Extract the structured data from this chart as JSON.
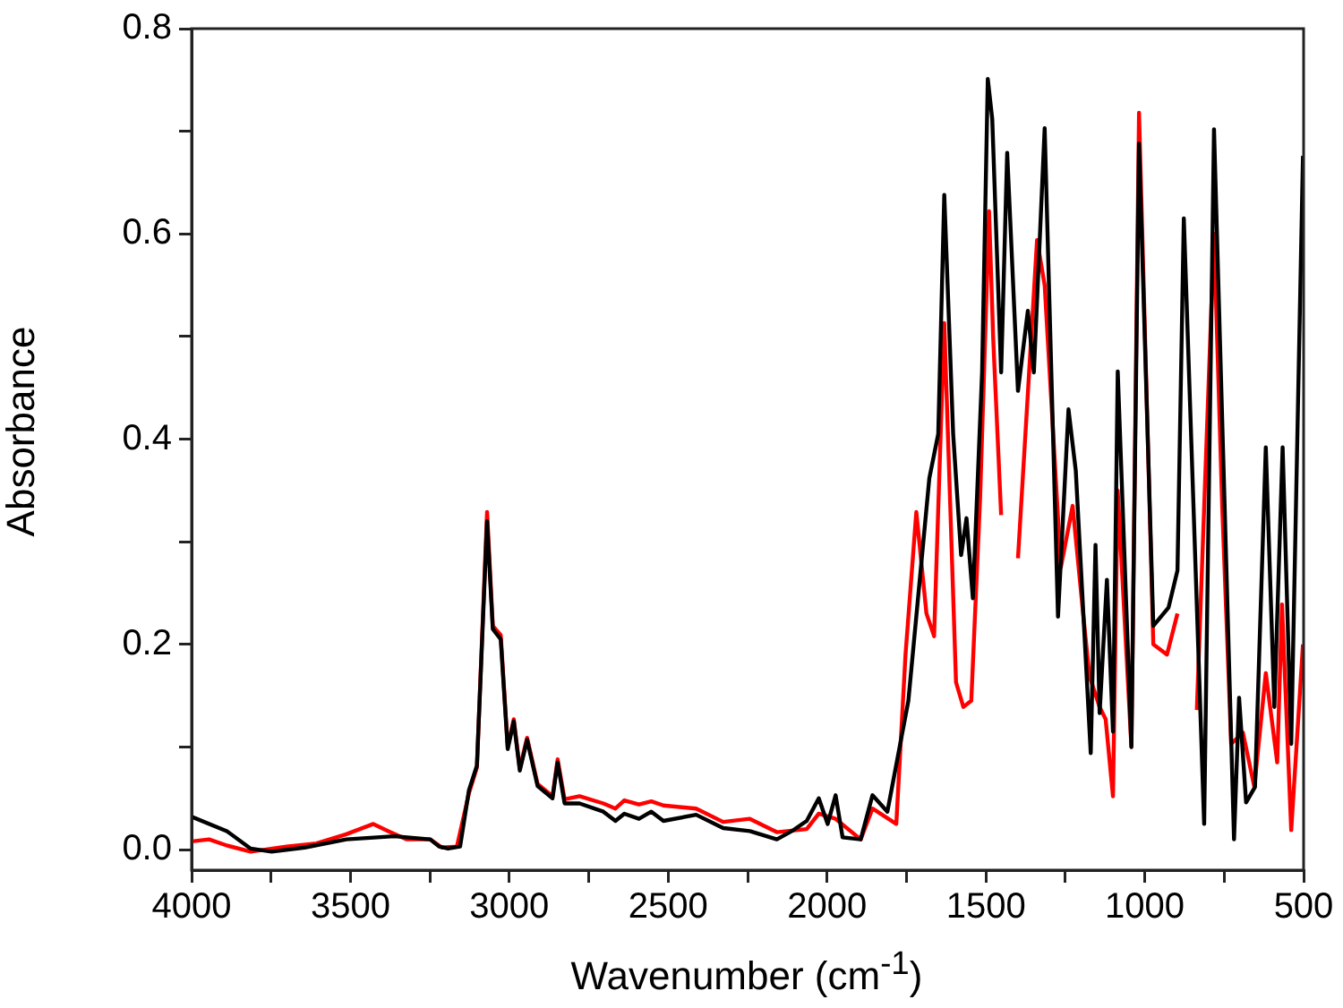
{
  "chart_data": {
    "type": "line",
    "xlabel": "Wavenumber (cm$^{-1}$)",
    "ylabel": "Absorbance",
    "xlim": [
      4000,
      500
    ],
    "xticks": [
      4000,
      {
        "value": 3750,
        "label": null
      },
      3500,
      {
        "value": 3250,
        "label": null
      },
      3000,
      {
        "value": 2750,
        "label": null
      },
      2500,
      {
        "value": 2250,
        "label": null
      },
      2000,
      {
        "value": 1750,
        "label": null
      },
      1500,
      {
        "value": 1250,
        "label": null
      },
      1000,
      {
        "value": 750,
        "label": null
      },
      500
    ],
    "ylim": [
      -0.02,
      0.8
    ],
    "yticks": [
      {
        "value": 0,
        "label": "0.0"
      },
      {
        "value": 0.1,
        "label": null
      },
      {
        "value": 0.2,
        "label": "0.2"
      },
      {
        "value": 0.3,
        "label": null
      },
      {
        "value": 0.4,
        "label": "0.4"
      },
      {
        "value": 0.5,
        "label": null
      },
      {
        "value": 0.6,
        "label": "0.6"
      },
      {
        "value": 0.7,
        "label": null
      },
      {
        "value": 0.8,
        "label": "0.8"
      }
    ],
    "series": [
      {
        "color": "#ff0000",
        "x": [
          4000,
          3945,
          3889,
          3814,
          3701,
          3607,
          3513,
          3428,
          3381,
          3324,
          3249,
          3212,
          3165,
          3127,
          3102,
          3070,
          3052,
          3027,
          3005,
          2986,
          2967,
          2944,
          2911,
          2864,
          2848,
          2826,
          2779,
          2704,
          2666,
          2638,
          2592,
          2553,
          2515,
          2412,
          2327,
          2243,
          2158,
          2064,
          2026,
          1973,
          1894,
          1857,
          1782,
          1753,
          1719,
          1687,
          1663,
          1631,
          1594,
          1571,
          1546,
          1518,
          1490,
          1477,
          1452,
          1433,
          1399,
          1339,
          1315,
          1264,
          1227,
          1193,
          1174,
          1142,
          1123,
          1100,
          1085,
          1042,
          1018,
          973,
          930,
          897,
          877,
          836,
          782,
          756,
          728,
          691,
          655,
          619,
          583,
          568,
          539,
          502
        ],
        "values": [
          0.008,
          0.01,
          0.004,
          -0.002,
          0.003,
          0.006,
          0.015,
          0.025,
          0.018,
          0.01,
          0.01,
          0.002,
          0.003,
          0.055,
          0.08,
          0.329,
          0.218,
          0.209,
          0.1,
          0.127,
          0.079,
          0.109,
          0.064,
          0.052,
          0.088,
          0.049,
          0.052,
          0.045,
          0.04,
          0.048,
          0.044,
          0.047,
          0.043,
          0.04,
          0.027,
          0.03,
          0.017,
          0.02,
          0.035,
          0.03,
          0.01,
          0.04,
          0.025,
          0.19,
          0.329,
          0.23,
          0.208,
          0.513,
          0.163,
          0.139,
          0.145,
          0.344,
          0.622,
          0.498,
          0.326,
          null,
          0.284,
          0.594,
          0.55,
          0.275,
          0.335,
          0.227,
          0.169,
          0.139,
          0.127,
          0.052,
          0.35,
          0.1,
          0.718,
          0.2,
          0.19,
          0.23,
          null,
          0.136,
          0.6,
          0.333,
          0.103,
          0.114,
          0.061,
          0.172,
          0.085,
          0.239,
          0.019,
          0.2
        ]
      },
      {
        "color": "#000000",
        "x": [
          4000,
          3889,
          3814,
          3748,
          3644,
          3513,
          3362,
          3249,
          3221,
          3193,
          3155,
          3127,
          3102,
          3070,
          3052,
          3027,
          3005,
          2986,
          2967,
          2944,
          2911,
          2864,
          2848,
          2826,
          2779,
          2704,
          2666,
          2638,
          2592,
          2553,
          2515,
          2412,
          2327,
          2243,
          2158,
          2111,
          2064,
          2026,
          1998,
          1973,
          1951,
          1894,
          1857,
          1810,
          1744,
          1678,
          1650,
          1631,
          1603,
          1578,
          1561,
          1541,
          1512,
          1494,
          1480,
          1452,
          1433,
          1399,
          1368,
          1349,
          1315,
          1273,
          1240,
          1217,
          1170,
          1155,
          1142,
          1119,
          1100,
          1085,
          1042,
          1018,
          973,
          925,
          897,
          877,
          813,
          782,
          719,
          703,
          681,
          653,
          619,
          592,
          566,
          539,
          502
        ],
        "values": [
          0.032,
          0.018,
          0.001,
          -0.002,
          0.002,
          0.01,
          0.013,
          0.01,
          0.003,
          0.001,
          0.003,
          0.058,
          0.082,
          0.32,
          0.215,
          0.205,
          0.098,
          0.125,
          0.077,
          0.107,
          0.062,
          0.05,
          0.085,
          0.045,
          0.045,
          0.037,
          0.028,
          0.035,
          0.03,
          0.037,
          0.028,
          0.034,
          0.021,
          0.018,
          0.01,
          0.018,
          0.028,
          0.05,
          0.025,
          0.053,
          0.012,
          0.01,
          0.053,
          0.037,
          0.145,
          0.362,
          0.405,
          0.638,
          0.405,
          0.287,
          0.323,
          0.245,
          0.465,
          0.751,
          0.712,
          0.465,
          0.679,
          0.447,
          0.525,
          0.465,
          0.703,
          0.227,
          0.429,
          0.369,
          0.094,
          0.297,
          0.133,
          0.263,
          0.115,
          0.466,
          0.1,
          0.688,
          0.218,
          0.236,
          0.272,
          0.615,
          0.025,
          0.702,
          0.01,
          0.148,
          0.046,
          0.061,
          0.392,
          0.139,
          0.392,
          0.103,
          0.676
        ]
      }
    ]
  }
}
